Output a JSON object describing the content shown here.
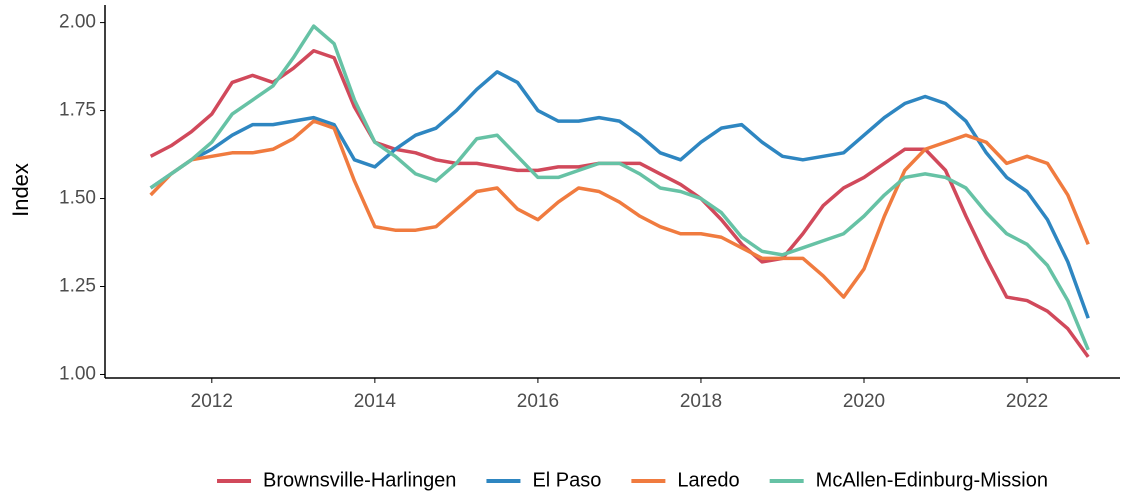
{
  "chart_data": {
    "type": "line",
    "y_label": "Index",
    "x": [
      2011.25,
      2011.5,
      2011.75,
      2012,
      2012.25,
      2012.5,
      2012.75,
      2013,
      2013.25,
      2013.5,
      2013.75,
      2014,
      2014.25,
      2014.5,
      2014.75,
      2015,
      2015.25,
      2015.5,
      2015.75,
      2016,
      2016.25,
      2016.5,
      2016.75,
      2017,
      2017.25,
      2017.5,
      2017.75,
      2018,
      2018.25,
      2018.5,
      2018.75,
      2019,
      2019.25,
      2019.5,
      2019.75,
      2020,
      2020.25,
      2020.5,
      2020.75,
      2021,
      2021.25,
      2021.5,
      2021.75,
      2022,
      2022.25,
      2022.5,
      2022.75
    ],
    "series": [
      {
        "name": "Brownsville-Harlingen",
        "color": "#d1495b",
        "values": [
          1.62,
          1.65,
          1.69,
          1.74,
          1.83,
          1.85,
          1.83,
          1.87,
          1.92,
          1.9,
          1.76,
          1.66,
          1.64,
          1.63,
          1.61,
          1.6,
          1.6,
          1.59,
          1.58,
          1.58,
          1.59,
          1.59,
          1.6,
          1.6,
          1.6,
          1.57,
          1.54,
          1.5,
          1.44,
          1.37,
          1.32,
          1.33,
          1.4,
          1.48,
          1.53,
          1.56,
          1.6,
          1.64,
          1.64,
          1.58,
          1.45,
          1.33,
          1.22,
          1.21,
          1.18,
          1.13,
          1.05
        ]
      },
      {
        "name": "El Paso",
        "color": "#2e86c1",
        "values": [
          1.53,
          1.57,
          1.61,
          1.64,
          1.68,
          1.71,
          1.71,
          1.72,
          1.73,
          1.71,
          1.61,
          1.59,
          1.64,
          1.68,
          1.7,
          1.75,
          1.81,
          1.86,
          1.83,
          1.75,
          1.72,
          1.72,
          1.73,
          1.72,
          1.68,
          1.63,
          1.61,
          1.66,
          1.7,
          1.71,
          1.66,
          1.62,
          1.61,
          1.62,
          1.63,
          1.68,
          1.73,
          1.77,
          1.79,
          1.77,
          1.72,
          1.63,
          1.56,
          1.52,
          1.44,
          1.32,
          1.16
        ]
      },
      {
        "name": "Laredo",
        "color": "#f07b3f",
        "values": [
          1.51,
          1.57,
          1.61,
          1.62,
          1.63,
          1.63,
          1.64,
          1.67,
          1.72,
          1.7,
          1.55,
          1.42,
          1.41,
          1.41,
          1.42,
          1.47,
          1.52,
          1.53,
          1.47,
          1.44,
          1.49,
          1.53,
          1.52,
          1.49,
          1.45,
          1.42,
          1.4,
          1.4,
          1.39,
          1.36,
          1.33,
          1.33,
          1.33,
          1.28,
          1.22,
          1.3,
          1.45,
          1.58,
          1.64,
          1.66,
          1.68,
          1.66,
          1.6,
          1.62,
          1.6,
          1.51,
          1.37
        ]
      },
      {
        "name": "McAllen-Edinburg-Mission",
        "color": "#66c2a5",
        "values": [
          1.53,
          1.57,
          1.61,
          1.66,
          1.74,
          1.78,
          1.82,
          1.9,
          1.99,
          1.94,
          1.78,
          1.66,
          1.62,
          1.57,
          1.55,
          1.6,
          1.67,
          1.68,
          1.62,
          1.56,
          1.56,
          1.58,
          1.6,
          1.6,
          1.57,
          1.53,
          1.52,
          1.5,
          1.46,
          1.39,
          1.35,
          1.34,
          1.36,
          1.38,
          1.4,
          1.45,
          1.51,
          1.56,
          1.57,
          1.56,
          1.53,
          1.46,
          1.4,
          1.37,
          1.31,
          1.21,
          1.07
        ]
      }
    ],
    "xlim": [
      2010.69,
      2023.14
    ],
    "xticks": [
      2012,
      2014,
      2016,
      2018,
      2020,
      2022
    ],
    "ylim": [
      0.99,
      2.05
    ],
    "yticks": [
      {
        "value": 1,
        "label": "1.00"
      },
      {
        "value": 1.25,
        "label": "1.25"
      },
      {
        "value": 1.5,
        "label": "1.50"
      },
      {
        "value": 1.75,
        "label": "1.75"
      },
      {
        "value": 2,
        "label": "2.00"
      }
    ],
    "legend": "bottom"
  }
}
